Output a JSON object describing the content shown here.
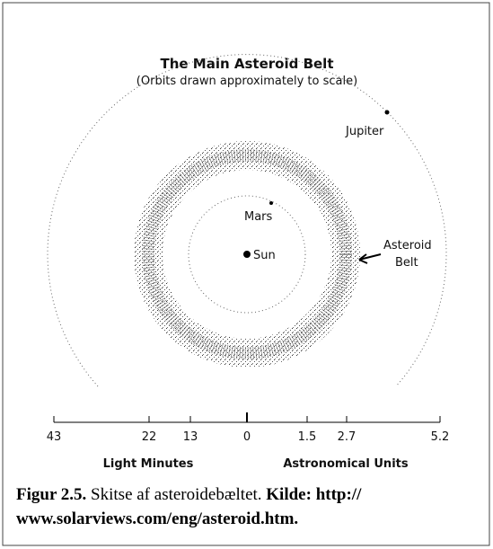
{
  "title": "The Main Asteroid Belt",
  "subtitle": "(Orbits drawn approximately to scale)",
  "bodies": {
    "jupiter": "Jupiter",
    "mars": "Mars",
    "sun": "Sun",
    "belt": [
      "Asteroid",
      "Belt"
    ]
  },
  "scale": {
    "ticks": [
      "43",
      "22",
      "13",
      "0",
      "1.5",
      "2.7",
      "5.2"
    ],
    "left_label": "Light Minutes",
    "right_label": "Astronomical Units"
  },
  "caption": {
    "label": "Figur 2.5.",
    "text": " Skitse af asteroidebæltet. ",
    "source": [
      "Kilde: http://",
      "www.solarviews.com/eng/asteroid.htm."
    ]
  }
}
